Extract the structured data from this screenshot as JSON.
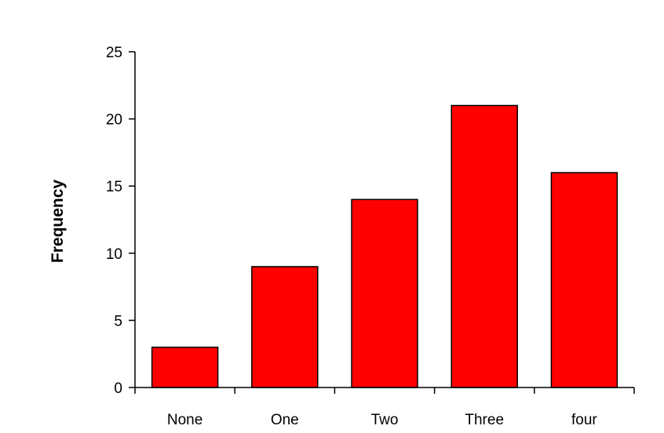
{
  "chart_data": {
    "type": "bar",
    "categories": [
      "None",
      "One",
      "Two",
      "Three",
      "four"
    ],
    "values": [
      3,
      9,
      14,
      21,
      16
    ],
    "xlabel": "",
    "ylabel": "Frequency",
    "ylim": [
      0,
      25
    ],
    "yticks": [
      0,
      5,
      10,
      15,
      20,
      25
    ],
    "grid": false,
    "legend": "none",
    "colors": {
      "bar_fill": "#ff0000",
      "bar_stroke": "#000000",
      "axis": "#000000"
    }
  }
}
